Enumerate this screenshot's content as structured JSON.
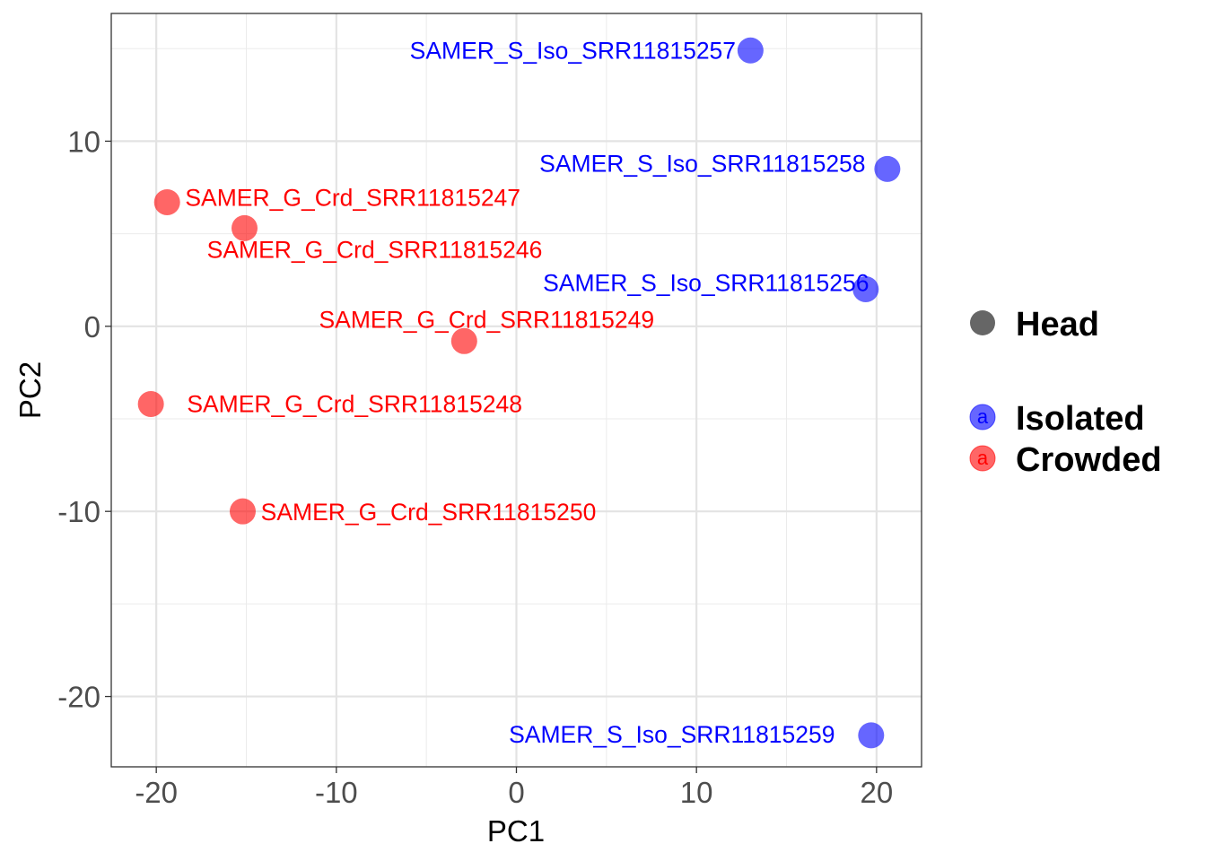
{
  "chart_data": {
    "type": "scatter",
    "title": "",
    "xlabel": "PC1",
    "ylabel": "PC2",
    "xlim": [
      -22.5,
      22.5
    ],
    "ylim": [
      -23.8,
      16.9
    ],
    "x_ticks": [
      -20,
      -10,
      0,
      10,
      20
    ],
    "x_tick_labels": [
      "-20",
      "-10",
      "0",
      "10",
      "20"
    ],
    "y_ticks": [
      -20,
      -10,
      0,
      10
    ],
    "y_tick_labels": [
      "-20",
      "-10",
      "0",
      "10"
    ],
    "x_minor": [
      -15,
      -5,
      5,
      15
    ],
    "y_minor": [
      -15,
      -5,
      5,
      15
    ],
    "grid": true,
    "legend_position": "right",
    "shape_legend": {
      "label": "Head",
      "color": "#666666"
    },
    "series": [
      {
        "name": "Isolated",
        "color": "#0000FF",
        "points": [
          {
            "x": 13.0,
            "y": 14.9,
            "label": "SAMER_S_Iso_SRR11815257"
          },
          {
            "x": 20.6,
            "y": 8.5,
            "label": "SAMER_S_Iso_SRR11815258"
          },
          {
            "x": 19.4,
            "y": 2.0,
            "label": "SAMER_S_Iso_SRR11815256"
          },
          {
            "x": 19.7,
            "y": -22.1,
            "label": "SAMER_S_Iso_SRR11815259"
          }
        ]
      },
      {
        "name": "Crowded",
        "color": "#FF0000",
        "points": [
          {
            "x": -19.4,
            "y": 6.7,
            "label": "SAMER_G_Crd_SRR11815247"
          },
          {
            "x": -15.1,
            "y": 5.3,
            "label": "SAMER_G_Crd_SRR11815246"
          },
          {
            "x": -2.9,
            "y": -0.8,
            "label": "SAMER_G_Crd_SRR11815249"
          },
          {
            "x": -20.3,
            "y": -4.2,
            "label": "SAMER_G_Crd_SRR11815248"
          },
          {
            "x": -15.2,
            "y": -10.0,
            "label": "SAMER_G_Crd_SRR11815250"
          }
        ]
      }
    ]
  },
  "legend": {
    "head_label": "Head",
    "isolated_label": "Isolated",
    "crowded_label": "Crowded",
    "glyph": "a"
  }
}
